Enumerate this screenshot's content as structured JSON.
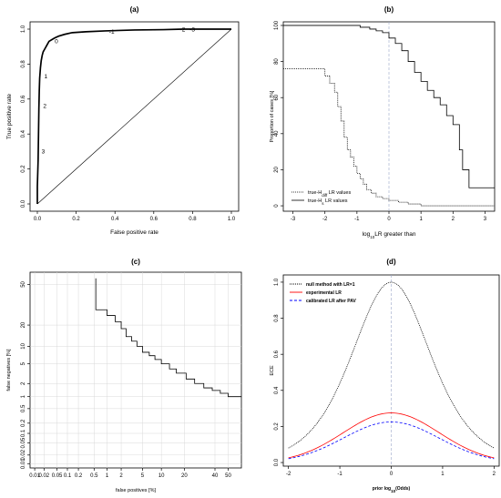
{
  "chart_data": [
    {
      "id": "a",
      "type": "line",
      "title": "(a)",
      "xlabel": "False positive rate",
      "ylabel": "True positive rate",
      "xlim": [
        0,
        1
      ],
      "ylim": [
        0,
        1
      ],
      "xticks": [
        "0.0",
        "0.2",
        "0.4",
        "0.6",
        "0.8",
        "1.0"
      ],
      "yticks": [
        "0.0",
        "0.2",
        "0.4",
        "0.6",
        "0.8",
        "1.0"
      ],
      "grid": false,
      "series": [
        {
          "style": "solid-thick",
          "x": [
            0,
            0,
            0.004,
            0.006,
            0.008,
            0.01,
            0.012,
            0.016,
            0.02,
            0.025,
            0.03,
            0.04,
            0.05,
            0.06,
            0.075,
            0.09,
            0.11,
            0.14,
            0.18,
            0.25,
            0.35,
            0.5,
            0.65,
            0.75,
            0.85,
            1.0
          ],
          "y": [
            0,
            0.1,
            0.25,
            0.4,
            0.55,
            0.65,
            0.72,
            0.78,
            0.82,
            0.85,
            0.87,
            0.89,
            0.91,
            0.93,
            0.94,
            0.95,
            0.96,
            0.97,
            0.98,
            0.985,
            0.99,
            0.995,
            0.997,
            1.0,
            1.0,
            1.0
          ]
        },
        {
          "style": "diagonal",
          "x": [
            0,
            1
          ],
          "y": [
            0,
            1
          ]
        }
      ],
      "annotations": [
        {
          "text": "0",
          "x": 0.09,
          "y": 0.93
        },
        {
          "text": "1",
          "x": 0.035,
          "y": 0.73
        },
        {
          "text": "2",
          "x": 0.03,
          "y": 0.56
        },
        {
          "text": "3",
          "x": 0.022,
          "y": 0.3
        },
        {
          "text": "-1",
          "x": 0.37,
          "y": 0.985
        },
        {
          "text": "-2",
          "x": 0.735,
          "y": 0.997
        },
        {
          "text": "-3",
          "x": 0.785,
          "y": 0.997
        }
      ]
    },
    {
      "id": "b",
      "type": "line",
      "title": "(b)",
      "xlabel_pre": "log",
      "xlabel_sub": "10",
      "xlabel_post": "LR greater than",
      "ylabel": "Proportion of cases [%]",
      "xlim": [
        -3.3,
        3.3
      ],
      "ylim": [
        -3,
        102
      ],
      "xticks": [
        "-3",
        "-2",
        "-1",
        "0",
        "1",
        "2",
        "3"
      ],
      "yticks": [
        "0",
        "20",
        "40",
        "60",
        "80",
        "100"
      ],
      "vline": 0,
      "grid": false,
      "series": [
        {
          "name_pre": "true-H",
          "name_sub": "diff",
          "name_post": " LR values",
          "style": "dotted-step",
          "x": [
            -3.3,
            -2.2,
            -2.0,
            -1.85,
            -1.7,
            -1.6,
            -1.5,
            -1.4,
            -1.3,
            -1.2,
            -1.1,
            -1.0,
            -0.9,
            -0.8,
            -0.7,
            -0.55,
            -0.4,
            -0.2,
            0.0,
            0.3,
            0.6,
            1.0,
            3.3
          ],
          "y": [
            76,
            76,
            72,
            68,
            63,
            55,
            47,
            38,
            31,
            27,
            22,
            18,
            15,
            12,
            9,
            7,
            5,
            4,
            3,
            2,
            1,
            0,
            0
          ]
        },
        {
          "name_pre": "true-H",
          "name_sub": "s",
          "name_post": " LR values",
          "style": "solid-step",
          "x": [
            -3.3,
            -1.2,
            -0.9,
            -0.6,
            -0.4,
            -0.2,
            0.0,
            0.2,
            0.4,
            0.6,
            0.8,
            1.0,
            1.2,
            1.4,
            1.6,
            1.8,
            2.0,
            2.2,
            2.3,
            2.5,
            3.3
          ],
          "y": [
            100,
            100,
            99,
            98,
            97,
            96,
            93,
            90,
            86,
            80,
            74,
            69,
            64,
            60,
            56,
            50,
            45,
            31,
            20,
            10,
            10
          ]
        }
      ],
      "legend": "bottom-left"
    },
    {
      "id": "c",
      "type": "line",
      "title": "(c)",
      "xlabel": "false positives [%]",
      "ylabel": "false negatives [%]",
      "scale": "probit",
      "xticks": [
        "0.01",
        "0.02",
        "0.05",
        "0.1",
        "0.2",
        "0.5",
        "1",
        "2",
        "5",
        "10",
        "20",
        "40",
        "50"
      ],
      "yticks": [
        "0.01",
        "0.02",
        "0.05",
        "0.1",
        "0.2",
        "0.5",
        "1",
        "2",
        "5",
        "10",
        "20",
        "50"
      ],
      "grid": true,
      "series": [
        {
          "style": "solid-step",
          "x": [
            0.55,
            0.55,
            1.0,
            1.5,
            2.0,
            2.5,
            3.2,
            4.0,
            5.0,
            6.5,
            8.0,
            10.0,
            13.0,
            16.0,
            21.0,
            26.0,
            32.0,
            38.0,
            44.0,
            50.0,
            60.0
          ],
          "y": [
            55.0,
            30.0,
            26.0,
            22.0,
            18.0,
            14.0,
            12.0,
            10.0,
            8.0,
            7.0,
            6.0,
            5.0,
            4.0,
            3.3,
            2.5,
            2.0,
            1.6,
            1.4,
            1.2,
            1.0,
            1.0
          ]
        }
      ]
    },
    {
      "id": "d",
      "type": "line",
      "title": "(d)",
      "xlabel_pre": "prior log",
      "xlabel_sub": "10",
      "xlabel_post": "(Odds)",
      "ylabel": "ECE",
      "xlim": [
        -2.1,
        2.1
      ],
      "ylim": [
        -0.02,
        1.04
      ],
      "xticks": [
        "-2",
        "-1",
        "0",
        "1",
        "2"
      ],
      "yticks": [
        "0.0",
        "0.2",
        "0.4",
        "0.6",
        "0.8",
        "1.0"
      ],
      "vline": 0,
      "grid": false,
      "series": [
        {
          "name": "null method with LR=1",
          "style": "dotted",
          "color": "#000000",
          "kind": "null"
        },
        {
          "name": "experimental LR",
          "style": "solid",
          "color": "#ff0000",
          "kind": "exp"
        },
        {
          "name": "calibrated LR after PAV",
          "style": "dashed",
          "color": "#0000ff",
          "kind": "pav"
        }
      ],
      "legend": "top-left"
    }
  ]
}
